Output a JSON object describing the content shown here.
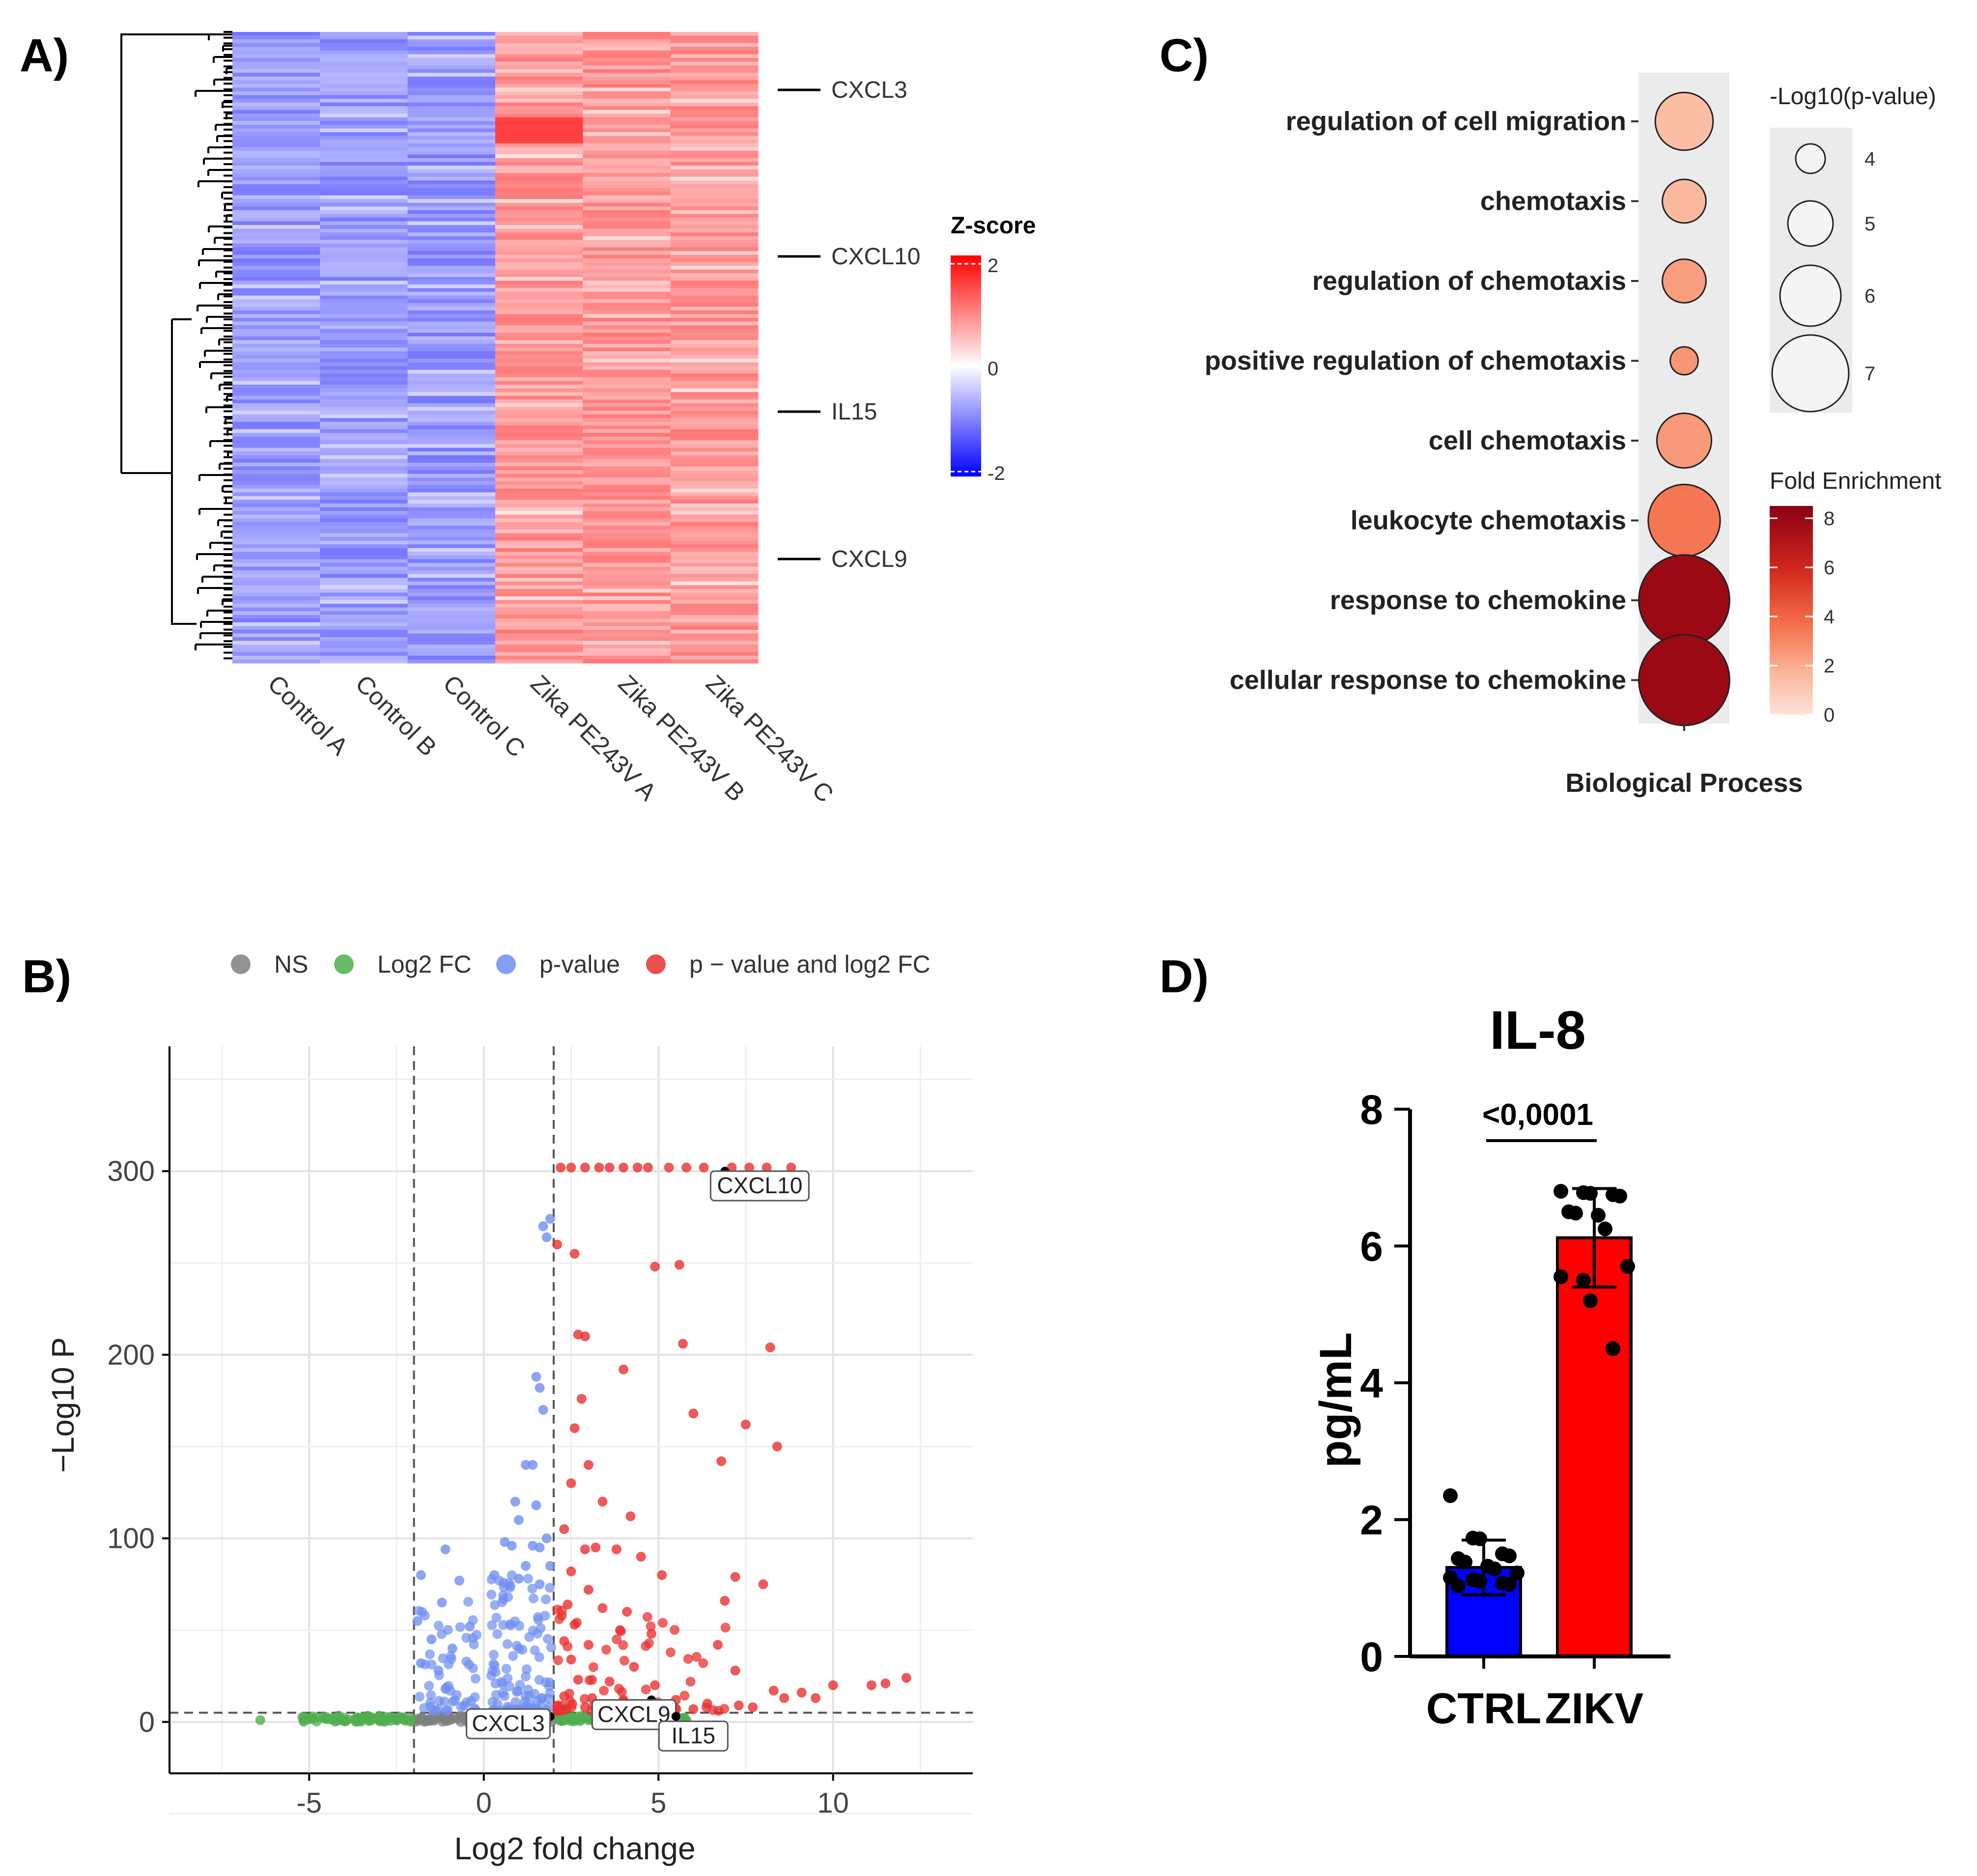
{
  "panels": {
    "a": "A)",
    "b": "B)",
    "c": "C)",
    "d": "D)"
  },
  "colors": {
    "heat_low": "#0000ff",
    "heat_mid": "#ffffff",
    "heat_high": "#ff0000",
    "ns": "#7f7f7f",
    "log2fc": "#4fae4f",
    "pvalue": "#6f8ef0",
    "both": "#e8312f",
    "ctrl_bar": "#0000ff",
    "zikv_bar": "#ff0000",
    "fe_low": "#fde3d8",
    "fe_high": "#8b0011"
  },
  "chart_data": [
    {
      "type": "heatmap",
      "columns": [
        "Control A",
        "Control B",
        "Control C",
        "Zika PE243V A",
        "Zika PE243V B",
        "Zika PE243V C"
      ],
      "highlighted_genes": [
        "CXCL3",
        "CXCL10",
        "IL15",
        "CXCL9"
      ],
      "colorbar": {
        "title": "Z-score",
        "ticks": [
          "2",
          "0",
          "-2"
        ],
        "range": [
          -2,
          2
        ]
      },
      "control_mean_z": -0.8,
      "zika_mean_z": 0.8,
      "dendrogram": true
    },
    {
      "type": "scatter",
      "title": "",
      "xlabel": "Log2 fold change",
      "ylabel": "−Log10 P",
      "xlim": [
        -9,
        14
      ],
      "ylim": [
        -28,
        368
      ],
      "xticks": [
        -5,
        0,
        5,
        10
      ],
      "xtick_labels": [
        "-5",
        "0",
        "5",
        "10"
      ],
      "yticks": [
        0,
        100,
        200,
        300
      ],
      "ytick_labels": [
        "0",
        "100",
        "200",
        "300"
      ],
      "thresholds": {
        "log2fc": [
          -2,
          2
        ],
        "neg_log10_p": 5
      },
      "legend": [
        "NS",
        "Log2 FC",
        "p-value",
        "p − value and log2 FC"
      ],
      "legend_position": "top",
      "labeled_points": [
        {
          "gene": "CXCL10",
          "x": 6.9,
          "y": 300
        },
        {
          "gene": "CXCL9",
          "x": 4.8,
          "y": 12
        },
        {
          "gene": "CXCL3",
          "x": 1.9,
          "y": 3
        },
        {
          "gene": "IL15",
          "x": 5.5,
          "y": 3
        }
      ],
      "series": [
        {
          "name": "p − value and log2 FC",
          "points": [
            [
              2.2,
              302
            ],
            [
              2.5,
              302
            ],
            [
              2.9,
              302
            ],
            [
              3.3,
              302
            ],
            [
              3.6,
              302
            ],
            [
              4.0,
              302
            ],
            [
              4.4,
              302
            ],
            [
              4.7,
              302
            ],
            [
              5.3,
              302
            ],
            [
              5.8,
              302
            ],
            [
              6.3,
              302
            ],
            [
              7.1,
              302
            ],
            [
              7.6,
              302
            ],
            [
              8.1,
              302
            ],
            [
              8.8,
              302
            ],
            [
              2.1,
              260
            ],
            [
              2.6,
              255
            ],
            [
              4.9,
              248
            ],
            [
              5.6,
              249
            ],
            [
              2.7,
              211
            ],
            [
              2.9,
              210
            ],
            [
              5.7,
              206
            ],
            [
              8.2,
              204
            ],
            [
              4.0,
              192
            ],
            [
              2.8,
              176
            ],
            [
              6.0,
              168
            ],
            [
              2.6,
              160
            ],
            [
              7.5,
              162
            ],
            [
              8.4,
              150
            ],
            [
              3.0,
              140
            ],
            [
              6.8,
              142
            ],
            [
              2.5,
              130
            ],
            [
              3.4,
              120
            ],
            [
              4.2,
              112
            ],
            [
              2.3,
              105
            ],
            [
              2.9,
              94
            ],
            [
              3.2,
              95
            ],
            [
              3.8,
              94
            ],
            [
              4.5,
              90
            ],
            [
              2.5,
              82
            ],
            [
              5.1,
              80
            ],
            [
              3.0,
              72
            ],
            [
              7.2,
              79
            ],
            [
              8.0,
              75
            ],
            [
              2.4,
              64
            ],
            [
              3.4,
              62
            ],
            [
              4.1,
              60
            ],
            [
              6.9,
              66
            ],
            [
              2.6,
              53
            ],
            [
              3.9,
              50
            ],
            [
              4.8,
              48
            ],
            [
              2.3,
              44
            ],
            [
              3.0,
              42
            ],
            [
              6.7,
              42
            ],
            [
              2.5,
              34
            ],
            [
              4.3,
              30
            ],
            [
              7.2,
              28
            ],
            [
              2.7,
              23
            ],
            [
              3.6,
              22
            ],
            [
              4.9,
              20
            ],
            [
              8.3,
              17
            ],
            [
              9.1,
              16
            ],
            [
              10.0,
              20
            ],
            [
              11.1,
              20
            ],
            [
              11.5,
              21
            ],
            [
              12.1,
              24
            ],
            [
              2.3,
              14
            ],
            [
              3.1,
              13
            ],
            [
              4.0,
              12
            ],
            [
              5.5,
              12
            ],
            [
              6.4,
              10
            ],
            [
              7.3,
              9
            ],
            [
              8.6,
              13
            ],
            [
              2.9,
              8
            ],
            [
              3.7,
              7
            ],
            [
              4.5,
              8
            ],
            [
              6.0,
              7
            ],
            [
              7.7,
              8
            ],
            [
              9.5,
              13
            ]
          ]
        },
        {
          "name": "p-value",
          "points": [
            [
              1.7,
              270
            ],
            [
              1.8,
              264
            ],
            [
              1.9,
              274
            ],
            [
              1.5,
              188
            ],
            [
              1.6,
              182
            ],
            [
              1.7,
              170
            ],
            [
              1.2,
              140
            ],
            [
              1.4,
              140
            ],
            [
              0.9,
              120
            ],
            [
              1.5,
              118
            ],
            [
              1.0,
              110
            ],
            [
              1.8,
              100
            ],
            [
              0.6,
              98
            ],
            [
              0.8,
              96
            ],
            [
              1.4,
              96
            ],
            [
              1.6,
              95
            ],
            [
              1.2,
              85
            ],
            [
              1.9,
              85
            ],
            [
              0.3,
              80
            ],
            [
              1.0,
              78
            ],
            [
              1.6,
              75
            ],
            [
              -1.1,
              94
            ],
            [
              -1.8,
              80
            ],
            [
              -0.7,
              77
            ],
            [
              -1.2,
              65
            ],
            [
              -1.9,
              55
            ],
            [
              -0.4,
              52
            ],
            [
              -1.5,
              45
            ],
            [
              -0.9,
              40
            ],
            [
              -1.3,
              28
            ],
            [
              -1.8,
              32
            ],
            [
              -1.1,
              18
            ]
          ]
        },
        {
          "name": "Log2 FC",
          "points": [
            [
              -6.4,
              1
            ],
            [
              -5.0,
              2
            ],
            [
              -4.8,
              2.5
            ],
            [
              -4.5,
              1.5
            ],
            [
              -3.5,
              1
            ],
            [
              -3.0,
              1
            ],
            [
              -2.5,
              1
            ],
            [
              2.5,
              1
            ],
            [
              3.0,
              1
            ],
            [
              3.5,
              1
            ],
            [
              4.0,
              1
            ],
            [
              4.5,
              1
            ],
            [
              5.0,
              1
            ],
            [
              5.8,
              1
            ]
          ]
        },
        {
          "name": "NS",
          "points": [
            [
              -1.5,
              1
            ],
            [
              -1.0,
              1
            ],
            [
              -0.5,
              1
            ],
            [
              0,
              1
            ],
            [
              0.5,
              1
            ],
            [
              1.0,
              1
            ],
            [
              1.5,
              1
            ]
          ]
        }
      ]
    },
    {
      "type": "scatter",
      "subtype": "bubble",
      "xlabel": "Biological Process",
      "terms": [
        {
          "term": "regulation of cell migration",
          "fold_enrichment": 2.1,
          "neg_log10_p": 5.8
        },
        {
          "term": "chemotaxis",
          "fold_enrichment": 2.4,
          "neg_log10_p": 4.9
        },
        {
          "term": "regulation of chemotaxis",
          "fold_enrichment": 3.1,
          "neg_log10_p": 4.9
        },
        {
          "term": "positive regulation of chemotaxis",
          "fold_enrichment": 3.3,
          "neg_log10_p": 3.9
        },
        {
          "term": "cell chemotaxis",
          "fold_enrichment": 3.2,
          "neg_log10_p": 5.6
        },
        {
          "term": "leukocyte chemotaxis",
          "fold_enrichment": 4.0,
          "neg_log10_p": 6.7
        },
        {
          "term": "response to chemokine",
          "fold_enrichment": 8.0,
          "neg_log10_p": 7.9
        },
        {
          "term": "cellular response to chemokine",
          "fold_enrichment": 8.0,
          "neg_log10_p": 7.9
        }
      ],
      "size_legend": {
        "title": "-Log10(p-value)",
        "values": [
          4,
          5,
          6,
          7
        ],
        "labels": [
          "4",
          "5",
          "6",
          "7"
        ]
      },
      "color_legend": {
        "title": "Fold Enrichment",
        "ticks": [
          8,
          6,
          4,
          2,
          0
        ],
        "labels": [
          "8",
          "6",
          "4",
          "2",
          "0"
        ],
        "range": [
          0,
          8.5
        ]
      }
    },
    {
      "type": "bar",
      "title": "IL-8",
      "categories": [
        "CTRL",
        "ZIKV"
      ],
      "values": [
        1.3,
        6.12
      ],
      "error": [
        0.4,
        0.72
      ],
      "ylabel": "pg/mL",
      "ylim": [
        0,
        8
      ],
      "yticks": [
        0,
        2,
        4,
        6,
        8
      ],
      "ytick_labels": [
        "0",
        "2",
        "4",
        "6",
        "8"
      ],
      "significance": "<0,0001",
      "points": {
        "CTRL": [
          2.35,
          1.73,
          1.72,
          1.5,
          1.47,
          1.43,
          1.38,
          1.32,
          1.28,
          1.22,
          1.15,
          1.12,
          1.1,
          1.07,
          1.05,
          1.03
        ],
        "ZIKV": [
          6.8,
          6.78,
          6.77,
          6.75,
          6.73,
          6.5,
          6.48,
          6.45,
          6.25,
          5.7,
          5.55,
          5.5,
          5.2,
          4.5
        ]
      }
    }
  ]
}
